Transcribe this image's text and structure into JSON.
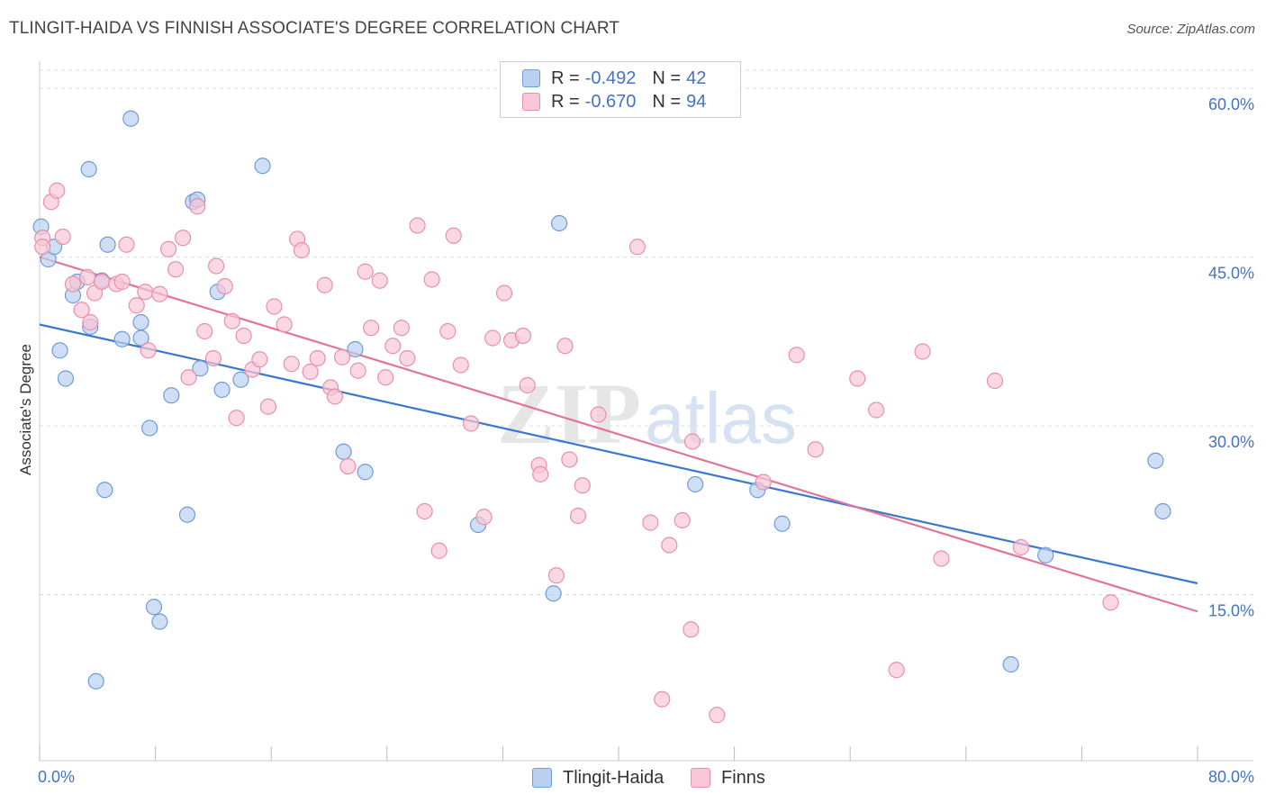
{
  "title": "TLINGIT-HAIDA VS FINNISH ASSOCIATE'S DEGREE CORRELATION CHART",
  "source": "Source: ZipAtlas.com",
  "watermark": {
    "zip": "ZIP",
    "atlas": "atlas"
  },
  "colors": {
    "blue_fill": "#b9d0f0",
    "blue_stroke": "#6f9bd8",
    "blue_line": "#3a78cf",
    "pink_fill": "#f8c6d6",
    "pink_stroke": "#e88fab",
    "pink_line": "#e2739a",
    "axis_text": "#4472c4",
    "grid": "#dddddd"
  },
  "legend": {
    "rows": [
      {
        "r_label": "R =",
        "r_value": "-0.492",
        "n_label": "N =",
        "n_value": "42"
      },
      {
        "r_label": "R =",
        "r_value": "-0.670",
        "n_label": "N =",
        "n_value": "94"
      }
    ]
  },
  "series_names": {
    "blue": "Tlingit-Haida",
    "pink": "Finns"
  },
  "chart_data": {
    "type": "scatter",
    "title": "TLINGIT-HAIDA VS FINNISH ASSOCIATE'S DEGREE CORRELATION CHART",
    "xlabel": "",
    "ylabel": "Associate's Degree",
    "xlim": [
      0,
      80
    ],
    "ylim": [
      0,
      62
    ],
    "x_tick_labels": [
      "0.0%",
      "80.0%"
    ],
    "y_ticks": [
      15,
      30,
      45,
      60
    ],
    "y_tick_labels": [
      "15.0%",
      "30.0%",
      "45.0%",
      "60.0%"
    ],
    "grid": true,
    "legend_position": "top-center",
    "series": [
      {
        "name": "Tlingit-Haida",
        "color": "#6f9bd8",
        "r": -0.492,
        "n": 42,
        "trend": {
          "x": [
            0,
            80
          ],
          "y": [
            39.0,
            16.0
          ]
        },
        "points": [
          [
            0.1,
            47.7
          ],
          [
            0.6,
            44.8
          ],
          [
            1.0,
            45.9
          ],
          [
            1.4,
            36.7
          ],
          [
            1.8,
            34.2
          ],
          [
            2.3,
            41.6
          ],
          [
            2.6,
            42.8
          ],
          [
            3.4,
            52.8
          ],
          [
            3.5,
            38.8
          ],
          [
            4.3,
            42.9
          ],
          [
            4.5,
            24.3
          ],
          [
            4.7,
            46.1
          ],
          [
            5.7,
            37.7
          ],
          [
            6.3,
            57.3
          ],
          [
            7.0,
            39.2
          ],
          [
            7.0,
            37.8
          ],
          [
            7.6,
            29.8
          ],
          [
            7.9,
            13.9
          ],
          [
            8.3,
            12.6
          ],
          [
            9.1,
            32.7
          ],
          [
            10.2,
            22.1
          ],
          [
            10.6,
            49.9
          ],
          [
            10.9,
            50.1
          ],
          [
            11.1,
            35.1
          ],
          [
            12.3,
            41.9
          ],
          [
            12.6,
            33.2
          ],
          [
            13.9,
            34.1
          ],
          [
            15.4,
            53.1
          ],
          [
            21.0,
            27.7
          ],
          [
            21.8,
            36.8
          ],
          [
            22.5,
            25.9
          ],
          [
            30.3,
            21.2
          ],
          [
            35.5,
            15.1
          ],
          [
            35.9,
            48.0
          ],
          [
            45.3,
            24.8
          ],
          [
            49.6,
            24.3
          ],
          [
            51.3,
            21.3
          ],
          [
            67.1,
            8.8
          ],
          [
            69.5,
            18.5
          ],
          [
            77.1,
            26.9
          ],
          [
            77.6,
            22.4
          ],
          [
            3.9,
            7.3
          ]
        ]
      },
      {
        "name": "Finns",
        "color": "#e88fab",
        "r": -0.67,
        "n": 94,
        "trend": {
          "x": [
            0,
            80
          ],
          "y": [
            45.0,
            13.5
          ]
        },
        "points": [
          [
            0.2,
            46.7
          ],
          [
            0.8,
            49.9
          ],
          [
            1.2,
            50.9
          ],
          [
            1.6,
            46.8
          ],
          [
            2.3,
            42.6
          ],
          [
            2.9,
            40.3
          ],
          [
            3.3,
            43.2
          ],
          [
            3.5,
            39.2
          ],
          [
            3.8,
            41.8
          ],
          [
            4.3,
            42.8
          ],
          [
            5.3,
            42.6
          ],
          [
            5.7,
            42.8
          ],
          [
            6.0,
            46.1
          ],
          [
            6.7,
            40.7
          ],
          [
            7.5,
            36.7
          ],
          [
            7.3,
            41.9
          ],
          [
            8.3,
            41.7
          ],
          [
            8.9,
            45.7
          ],
          [
            9.4,
            43.9
          ],
          [
            9.9,
            46.7
          ],
          [
            10.3,
            34.3
          ],
          [
            10.9,
            49.5
          ],
          [
            11.4,
            38.4
          ],
          [
            12.0,
            36.0
          ],
          [
            12.2,
            44.2
          ],
          [
            12.8,
            42.4
          ],
          [
            13.3,
            39.3
          ],
          [
            13.6,
            30.7
          ],
          [
            14.1,
            38.0
          ],
          [
            14.7,
            35.0
          ],
          [
            15.2,
            35.9
          ],
          [
            15.8,
            31.7
          ],
          [
            16.2,
            40.6
          ],
          [
            16.9,
            39.0
          ],
          [
            17.4,
            35.5
          ],
          [
            17.8,
            46.6
          ],
          [
            18.1,
            45.6
          ],
          [
            18.7,
            34.8
          ],
          [
            19.2,
            36.0
          ],
          [
            19.7,
            42.5
          ],
          [
            20.1,
            33.4
          ],
          [
            20.4,
            32.6
          ],
          [
            20.9,
            36.1
          ],
          [
            21.3,
            26.4
          ],
          [
            22.0,
            34.9
          ],
          [
            22.5,
            43.7
          ],
          [
            22.9,
            38.7
          ],
          [
            23.5,
            42.9
          ],
          [
            23.9,
            34.3
          ],
          [
            24.4,
            37.1
          ],
          [
            25.0,
            38.7
          ],
          [
            25.4,
            36.0
          ],
          [
            26.1,
            47.8
          ],
          [
            26.6,
            22.4
          ],
          [
            27.1,
            43.0
          ],
          [
            27.6,
            18.9
          ],
          [
            28.2,
            38.4
          ],
          [
            28.6,
            46.9
          ],
          [
            29.1,
            35.4
          ],
          [
            29.8,
            30.2
          ],
          [
            30.7,
            21.9
          ],
          [
            31.3,
            37.8
          ],
          [
            32.1,
            41.8
          ],
          [
            32.6,
            37.6
          ],
          [
            33.4,
            38.0
          ],
          [
            33.7,
            33.6
          ],
          [
            34.5,
            26.5
          ],
          [
            34.6,
            25.7
          ],
          [
            35.7,
            16.7
          ],
          [
            36.3,
            37.1
          ],
          [
            36.6,
            27.0
          ],
          [
            37.2,
            22.0
          ],
          [
            37.5,
            24.7
          ],
          [
            38.6,
            31.0
          ],
          [
            41.3,
            45.9
          ],
          [
            42.2,
            21.4
          ],
          [
            43.5,
            19.4
          ],
          [
            44.4,
            21.6
          ],
          [
            45.1,
            28.6
          ],
          [
            45.0,
            11.9
          ],
          [
            43.0,
            5.7
          ],
          [
            46.8,
            4.3
          ],
          [
            50.0,
            25.0
          ],
          [
            52.3,
            36.3
          ],
          [
            53.6,
            27.9
          ],
          [
            56.5,
            34.2
          ],
          [
            57.8,
            31.4
          ],
          [
            59.2,
            8.3
          ],
          [
            61.0,
            36.6
          ],
          [
            62.3,
            18.2
          ],
          [
            66.0,
            34.0
          ],
          [
            67.8,
            19.2
          ],
          [
            74.0,
            14.3
          ],
          [
            0.2,
            45.9
          ]
        ]
      }
    ]
  }
}
